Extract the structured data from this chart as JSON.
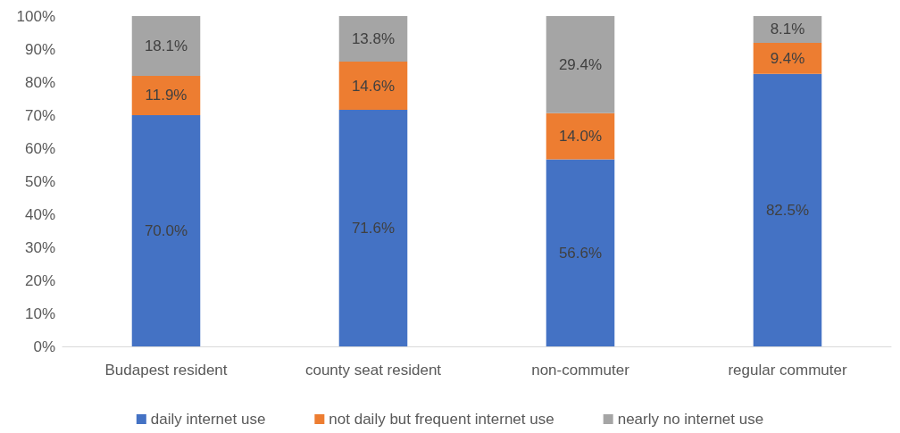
{
  "chart_data": {
    "type": "bar",
    "stacked": true,
    "categories": [
      "Budapest resident",
      "county seat resident",
      "non-commuter",
      "regular commuter"
    ],
    "series": [
      {
        "name": "daily internet use",
        "color": "#4472c4",
        "values": [
          70.0,
          71.6,
          56.6,
          82.5
        ],
        "value_labels": [
          "70.0%",
          "71.6%",
          "56.6%",
          "82.5%"
        ]
      },
      {
        "name": "not daily but frequent internet use",
        "color": "#ed7d31",
        "values": [
          11.9,
          14.6,
          14.0,
          9.4
        ],
        "value_labels": [
          "11.9%",
          "14.6%",
          "14.0%",
          "9.4%"
        ]
      },
      {
        "name": "nearly no internet use",
        "color": "#a5a5a5",
        "values": [
          18.1,
          13.8,
          29.4,
          8.1
        ],
        "value_labels": [
          "18.1%",
          "13.8%",
          "29.4%",
          "8.1%"
        ]
      }
    ],
    "ylim": [
      0,
      100
    ],
    "yticks": [
      {
        "value": 0,
        "label": "0%"
      },
      {
        "value": 10,
        "label": "10%"
      },
      {
        "value": 20,
        "label": "20%"
      },
      {
        "value": 30,
        "label": "30%"
      },
      {
        "value": 40,
        "label": "40%"
      },
      {
        "value": 50,
        "label": "50%"
      },
      {
        "value": 60,
        "label": "60%"
      },
      {
        "value": 70,
        "label": "70%"
      },
      {
        "value": 80,
        "label": "80%"
      },
      {
        "value": 90,
        "label": "90%"
      },
      {
        "value": 100,
        "label": "100%"
      }
    ],
    "grid": false,
    "legend": "bottom"
  }
}
